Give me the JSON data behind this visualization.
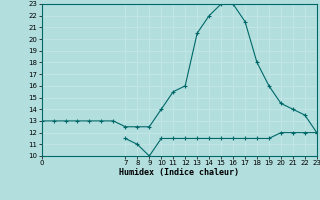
{
  "line1_x": [
    0,
    1,
    2,
    3,
    4,
    5,
    6,
    7,
    8,
    9,
    10,
    11,
    12,
    13,
    14,
    15,
    16,
    17,
    18,
    19,
    20,
    21,
    22,
    23
  ],
  "line1_y": [
    13,
    13,
    13,
    13,
    13,
    13,
    13,
    12.5,
    12.5,
    12.5,
    14,
    15.5,
    16,
    20.5,
    22,
    23,
    23,
    21.5,
    18,
    16,
    14.5,
    14,
    13.5,
    12
  ],
  "line2_x": [
    7,
    8,
    9,
    10,
    11,
    12,
    13,
    14,
    15,
    16,
    17,
    18,
    19,
    20,
    21,
    22,
    23
  ],
  "line2_y": [
    11.5,
    11,
    10,
    11.5,
    11.5,
    11.5,
    11.5,
    11.5,
    11.5,
    11.5,
    11.5,
    11.5,
    11.5,
    12,
    12,
    12,
    12
  ],
  "line_color": "#006868",
  "bg_color": "#b2dede",
  "grid_color": "#c8e8e8",
  "xlabel": "Humidex (Indice chaleur)",
  "xlim": [
    0,
    23
  ],
  "ylim": [
    10,
    23
  ],
  "yticks": [
    10,
    11,
    12,
    13,
    14,
    15,
    16,
    17,
    18,
    19,
    20,
    21,
    22,
    23
  ],
  "xticks": [
    0,
    7,
    8,
    9,
    10,
    11,
    12,
    13,
    14,
    15,
    16,
    17,
    18,
    19,
    20,
    21,
    22,
    23
  ],
  "marker": "+"
}
